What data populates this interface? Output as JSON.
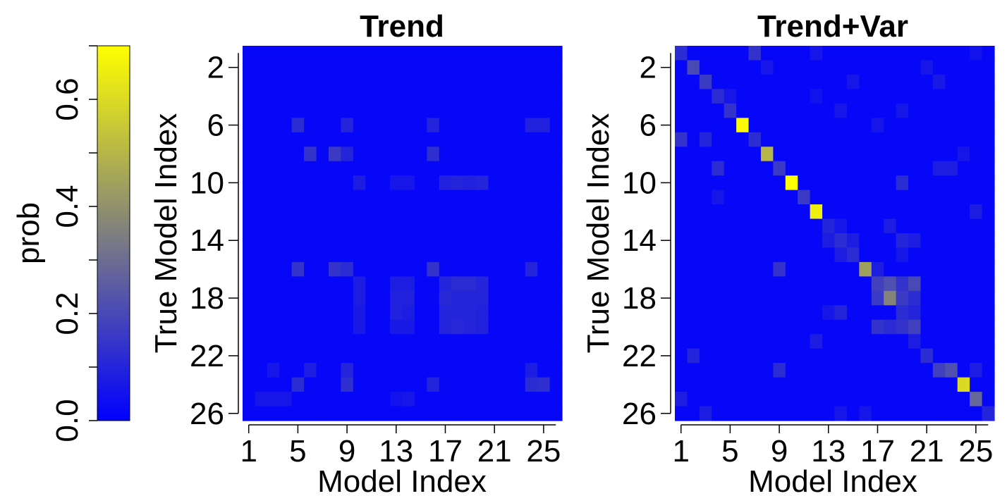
{
  "colorbar": {
    "label": "prob",
    "ticks": [
      {
        "value": 0.0,
        "label": "0.0"
      },
      {
        "value": 0.1,
        "label": ""
      },
      {
        "value": 0.2,
        "label": "0.2"
      },
      {
        "value": 0.3,
        "label": ""
      },
      {
        "value": 0.4,
        "label": "0.4"
      },
      {
        "value": 0.5,
        "label": ""
      },
      {
        "value": 0.6,
        "label": "0.6"
      },
      {
        "value": 0.7,
        "label": ""
      }
    ],
    "range": [
      0,
      0.7
    ],
    "colors": {
      "low": "#0000FF",
      "mid": "#7F7F7F",
      "high": "#FFFF00"
    }
  },
  "chart_data": [
    {
      "type": "heatmap",
      "title": "Trend",
      "xlabel": "Model Index",
      "ylabel": "True Model Index",
      "x_ticks": [
        "1",
        "5",
        "9",
        "13",
        "17",
        "21",
        "25"
      ],
      "y_ticks": [
        "2",
        "6",
        "10",
        "14",
        "18",
        "22",
        "26"
      ],
      "n": 26,
      "base_value": 0.02,
      "cells": [
        [
          6,
          5,
          0.12
        ],
        [
          6,
          9,
          0.1
        ],
        [
          6,
          16,
          0.1
        ],
        [
          6,
          24,
          0.09
        ],
        [
          6,
          25,
          0.09
        ],
        [
          8,
          6,
          0.14
        ],
        [
          8,
          8,
          0.16
        ],
        [
          8,
          9,
          0.1
        ],
        [
          8,
          16,
          0.13
        ],
        [
          10,
          10,
          0.08
        ],
        [
          10,
          13,
          0.06
        ],
        [
          10,
          14,
          0.06
        ],
        [
          10,
          17,
          0.09
        ],
        [
          10,
          18,
          0.1
        ],
        [
          10,
          19,
          0.09
        ],
        [
          10,
          20,
          0.1
        ],
        [
          16,
          5,
          0.14
        ],
        [
          16,
          8,
          0.14
        ],
        [
          16,
          9,
          0.12
        ],
        [
          16,
          16,
          0.14
        ],
        [
          16,
          24,
          0.1
        ],
        [
          17,
          10,
          0.08
        ],
        [
          17,
          13,
          0.08
        ],
        [
          17,
          14,
          0.08
        ],
        [
          17,
          17,
          0.1
        ],
        [
          17,
          18,
          0.12
        ],
        [
          17,
          19,
          0.12
        ],
        [
          17,
          20,
          0.1
        ],
        [
          18,
          10,
          0.08
        ],
        [
          18,
          13,
          0.09
        ],
        [
          18,
          14,
          0.09
        ],
        [
          18,
          17,
          0.11
        ],
        [
          18,
          18,
          0.1
        ],
        [
          18,
          19,
          0.1
        ],
        [
          18,
          20,
          0.1
        ],
        [
          19,
          10,
          0.07
        ],
        [
          19,
          13,
          0.09
        ],
        [
          19,
          14,
          0.08
        ],
        [
          19,
          17,
          0.1
        ],
        [
          19,
          18,
          0.1
        ],
        [
          19,
          19,
          0.1
        ],
        [
          19,
          20,
          0.09
        ],
        [
          20,
          10,
          0.07
        ],
        [
          20,
          13,
          0.07
        ],
        [
          20,
          14,
          0.07
        ],
        [
          20,
          17,
          0.1
        ],
        [
          20,
          18,
          0.11
        ],
        [
          20,
          19,
          0.1
        ],
        [
          20,
          20,
          0.09
        ],
        [
          23,
          3,
          0.06
        ],
        [
          23,
          6,
          0.08
        ],
        [
          23,
          9,
          0.1
        ],
        [
          23,
          24,
          0.08
        ],
        [
          24,
          5,
          0.12
        ],
        [
          24,
          9,
          0.13
        ],
        [
          24,
          16,
          0.1
        ],
        [
          24,
          24,
          0.12
        ],
        [
          24,
          25,
          0.13
        ],
        [
          25,
          2,
          0.06
        ],
        [
          25,
          3,
          0.06
        ],
        [
          25,
          4,
          0.06
        ],
        [
          25,
          13,
          0.05
        ],
        [
          25,
          14,
          0.06
        ]
      ]
    },
    {
      "type": "heatmap",
      "title": "Trend+Var",
      "xlabel": "Model Index",
      "ylabel": "True Model Index",
      "x_ticks": [
        "1",
        "5",
        "9",
        "13",
        "17",
        "21",
        "25"
      ],
      "y_ticks": [
        "2",
        "6",
        "10",
        "14",
        "18",
        "22",
        "26"
      ],
      "n": 26,
      "base_value": 0.02,
      "cells": [
        [
          1,
          1,
          0.12
        ],
        [
          1,
          7,
          0.14
        ],
        [
          1,
          12,
          0.06
        ],
        [
          1,
          25,
          0.05
        ],
        [
          2,
          2,
          0.2
        ],
        [
          2,
          8,
          0.06
        ],
        [
          2,
          21,
          0.06
        ],
        [
          3,
          3,
          0.16
        ],
        [
          3,
          15,
          0.06
        ],
        [
          3,
          22,
          0.07
        ],
        [
          4,
          4,
          0.12
        ],
        [
          4,
          5,
          0.06
        ],
        [
          4,
          12,
          0.05
        ],
        [
          5,
          5,
          0.14
        ],
        [
          5,
          14,
          0.06
        ],
        [
          5,
          19,
          0.06
        ],
        [
          6,
          6,
          0.68
        ],
        [
          6,
          17,
          0.06
        ],
        [
          7,
          1,
          0.14
        ],
        [
          7,
          3,
          0.1
        ],
        [
          7,
          7,
          0.12
        ],
        [
          8,
          8,
          0.5
        ],
        [
          8,
          24,
          0.06
        ],
        [
          9,
          4,
          0.12
        ],
        [
          9,
          9,
          0.16
        ],
        [
          9,
          22,
          0.08
        ],
        [
          9,
          23,
          0.08
        ],
        [
          10,
          10,
          0.7
        ],
        [
          10,
          19,
          0.12
        ],
        [
          11,
          4,
          0.06
        ],
        [
          11,
          11,
          0.16
        ],
        [
          12,
          12,
          0.66
        ],
        [
          12,
          25,
          0.08
        ],
        [
          13,
          13,
          0.1
        ],
        [
          13,
          14,
          0.06
        ],
        [
          13,
          18,
          0.08
        ],
        [
          14,
          13,
          0.08
        ],
        [
          14,
          14,
          0.12
        ],
        [
          14,
          15,
          0.08
        ],
        [
          14,
          19,
          0.1
        ],
        [
          14,
          20,
          0.08
        ],
        [
          15,
          14,
          0.08
        ],
        [
          15,
          15,
          0.12
        ],
        [
          15,
          19,
          0.06
        ],
        [
          16,
          9,
          0.14
        ],
        [
          16,
          16,
          0.44
        ],
        [
          16,
          17,
          0.08
        ],
        [
          17,
          17,
          0.18
        ],
        [
          17,
          18,
          0.22
        ],
        [
          17,
          19,
          0.14
        ],
        [
          17,
          20,
          0.2
        ],
        [
          18,
          17,
          0.16
        ],
        [
          18,
          18,
          0.36
        ],
        [
          18,
          19,
          0.16
        ],
        [
          18,
          20,
          0.12
        ],
        [
          19,
          13,
          0.06
        ],
        [
          19,
          14,
          0.1
        ],
        [
          19,
          19,
          0.12
        ],
        [
          19,
          20,
          0.1
        ],
        [
          20,
          17,
          0.14
        ],
        [
          20,
          18,
          0.12
        ],
        [
          20,
          19,
          0.14
        ],
        [
          20,
          20,
          0.18
        ],
        [
          21,
          12,
          0.08
        ],
        [
          21,
          20,
          0.08
        ],
        [
          22,
          2,
          0.1
        ],
        [
          22,
          21,
          0.12
        ],
        [
          23,
          9,
          0.12
        ],
        [
          23,
          22,
          0.18
        ],
        [
          23,
          23,
          0.22
        ],
        [
          23,
          25,
          0.08
        ],
        [
          24,
          24,
          0.6
        ],
        [
          25,
          1,
          0.08
        ],
        [
          25,
          25,
          0.28
        ],
        [
          26,
          3,
          0.08
        ],
        [
          26,
          14,
          0.06
        ],
        [
          26,
          16,
          0.06
        ],
        [
          26,
          26,
          0.1
        ]
      ]
    }
  ]
}
